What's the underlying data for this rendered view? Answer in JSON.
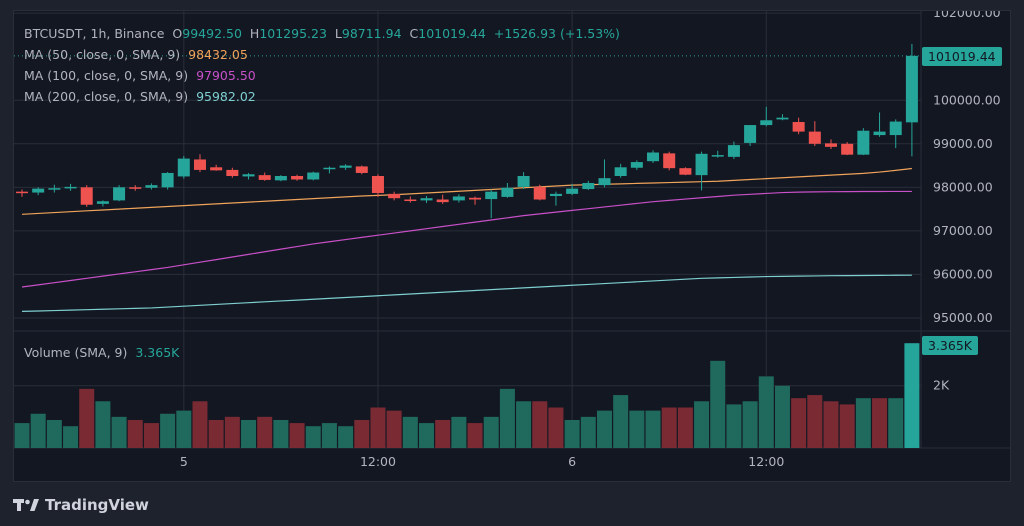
{
  "colors": {
    "background": "#131722",
    "up": "#26a69a",
    "down": "#ef5350",
    "volume_up": "#1f6a5c",
    "volume_down": "#7a2a33",
    "ma50": "#f0a35a",
    "ma100": "#c850c8",
    "ma200": "#7ecfd0",
    "grid": "#2a2e39"
  },
  "header": {
    "symbol_line": "BTCUSDT, 1h, Binance",
    "open_label": "O",
    "open": "99492.50",
    "high_label": "H",
    "high": "101295.23",
    "low_label": "L",
    "low": "98711.94",
    "close_label": "C",
    "close": "101019.44",
    "change": "+1526.93 (+1.53%)"
  },
  "indicators": [
    {
      "label": "MA (50, close, 0, SMA, 9)",
      "value": "98432.05",
      "color": "#f0a35a"
    },
    {
      "label": "MA (100, close, 0, SMA, 9)",
      "value": "97905.50",
      "color": "#c850c8"
    },
    {
      "label": "MA (200, close, 0, SMA, 9)",
      "value": "95982.02",
      "color": "#7ecfd0"
    }
  ],
  "volume_legend": {
    "label": "Volume (SMA, 9)",
    "value": "3.365K"
  },
  "price_axis": {
    "ticks": [
      "102000.00",
      "100000.00",
      "99000.00",
      "98000.00",
      "97000.00",
      "96000.00",
      "95000.00"
    ],
    "current": "101019.44"
  },
  "volume_axis": {
    "ticks": [
      "2K"
    ],
    "current": "3.365K"
  },
  "time_axis": {
    "ticks": [
      "5",
      "12:00",
      "6",
      "12:00"
    ]
  },
  "brand": "TradingView",
  "chart_data": {
    "type": "candlestick",
    "price_ylim": [
      94700,
      102050
    ],
    "candles": [
      {
        "o": 97900,
        "h": 97950,
        "l": 97780,
        "c": 97880
      },
      {
        "o": 97880,
        "h": 98000,
        "l": 97820,
        "c": 97970
      },
      {
        "o": 97950,
        "h": 98060,
        "l": 97880,
        "c": 97980
      },
      {
        "o": 98000,
        "h": 98080,
        "l": 97920,
        "c": 98010
      },
      {
        "o": 98000,
        "h": 98050,
        "l": 97550,
        "c": 97600
      },
      {
        "o": 97620,
        "h": 97700,
        "l": 97560,
        "c": 97680
      },
      {
        "o": 97700,
        "h": 98050,
        "l": 97680,
        "c": 98000
      },
      {
        "o": 98000,
        "h": 98050,
        "l": 97920,
        "c": 97990
      },
      {
        "o": 97990,
        "h": 98090,
        "l": 97950,
        "c": 98050
      },
      {
        "o": 98000,
        "h": 98350,
        "l": 97950,
        "c": 98330
      },
      {
        "o": 98250,
        "h": 98720,
        "l": 98200,
        "c": 98660
      },
      {
        "o": 98640,
        "h": 98760,
        "l": 98350,
        "c": 98400
      },
      {
        "o": 98460,
        "h": 98520,
        "l": 98380,
        "c": 98390
      },
      {
        "o": 98400,
        "h": 98450,
        "l": 98220,
        "c": 98260
      },
      {
        "o": 98250,
        "h": 98330,
        "l": 98180,
        "c": 98300
      },
      {
        "o": 98280,
        "h": 98340,
        "l": 98150,
        "c": 98170
      },
      {
        "o": 98160,
        "h": 98280,
        "l": 98140,
        "c": 98260
      },
      {
        "o": 98260,
        "h": 98290,
        "l": 98150,
        "c": 98180
      },
      {
        "o": 98180,
        "h": 98360,
        "l": 98160,
        "c": 98340
      },
      {
        "o": 98420,
        "h": 98480,
        "l": 98320,
        "c": 98450
      },
      {
        "o": 98450,
        "h": 98530,
        "l": 98400,
        "c": 98500
      },
      {
        "o": 98480,
        "h": 98500,
        "l": 98300,
        "c": 98330
      },
      {
        "o": 98260,
        "h": 98300,
        "l": 97780,
        "c": 97870
      },
      {
        "o": 97850,
        "h": 97900,
        "l": 97700,
        "c": 97750
      },
      {
        "o": 97720,
        "h": 97790,
        "l": 97650,
        "c": 97700
      },
      {
        "o": 97700,
        "h": 97800,
        "l": 97640,
        "c": 97750
      },
      {
        "o": 97720,
        "h": 97830,
        "l": 97620,
        "c": 97660
      },
      {
        "o": 97700,
        "h": 97840,
        "l": 97650,
        "c": 97790
      },
      {
        "o": 97760,
        "h": 97790,
        "l": 97600,
        "c": 97720
      },
      {
        "o": 97730,
        "h": 97950,
        "l": 97290,
        "c": 97900
      },
      {
        "o": 97780,
        "h": 98100,
        "l": 97760,
        "c": 97990
      },
      {
        "o": 98010,
        "h": 98350,
        "l": 97960,
        "c": 98260
      },
      {
        "o": 98010,
        "h": 98060,
        "l": 97700,
        "c": 97720
      },
      {
        "o": 97800,
        "h": 97900,
        "l": 97580,
        "c": 97850
      },
      {
        "o": 97850,
        "h": 98080,
        "l": 97820,
        "c": 97970
      },
      {
        "o": 97960,
        "h": 98150,
        "l": 97940,
        "c": 98100
      },
      {
        "o": 98050,
        "h": 98640,
        "l": 98000,
        "c": 98210
      },
      {
        "o": 98260,
        "h": 98540,
        "l": 98220,
        "c": 98460
      },
      {
        "o": 98450,
        "h": 98620,
        "l": 98400,
        "c": 98580
      },
      {
        "o": 98600,
        "h": 98850,
        "l": 98560,
        "c": 98800
      },
      {
        "o": 98780,
        "h": 98820,
        "l": 98390,
        "c": 98440
      },
      {
        "o": 98440,
        "h": 98460,
        "l": 98280,
        "c": 98290
      },
      {
        "o": 98280,
        "h": 98820,
        "l": 97930,
        "c": 98770
      },
      {
        "o": 98730,
        "h": 98840,
        "l": 98680,
        "c": 98740
      },
      {
        "o": 98700,
        "h": 99050,
        "l": 98650,
        "c": 98970
      },
      {
        "o": 99020,
        "h": 99430,
        "l": 98950,
        "c": 99430
      },
      {
        "o": 99430,
        "h": 99850,
        "l": 99400,
        "c": 99540
      },
      {
        "o": 99560,
        "h": 99680,
        "l": 99540,
        "c": 99600
      },
      {
        "o": 99500,
        "h": 99600,
        "l": 99220,
        "c": 99280
      },
      {
        "o": 99280,
        "h": 99520,
        "l": 98950,
        "c": 99000
      },
      {
        "o": 99010,
        "h": 99100,
        "l": 98880,
        "c": 98930
      },
      {
        "o": 99000,
        "h": 99040,
        "l": 98740,
        "c": 98750
      },
      {
        "o": 98750,
        "h": 99360,
        "l": 98740,
        "c": 99300
      },
      {
        "o": 99200,
        "h": 99720,
        "l": 99160,
        "c": 99280
      },
      {
        "o": 99200,
        "h": 99560,
        "l": 98900,
        "c": 99510
      },
      {
        "o": 99492.5,
        "h": 101295.23,
        "l": 98711.94,
        "c": 101019.44
      }
    ],
    "ma50": [
      97380,
      97400,
      97420,
      97440,
      97460,
      97480,
      97500,
      97520,
      97540,
      97560,
      97580,
      97600,
      97620,
      97640,
      97660,
      97680,
      97700,
      97720,
      97740,
      97760,
      97780,
      97800,
      97815,
      97830,
      97850,
      97870,
      97890,
      97910,
      97930,
      97950,
      97970,
      97990,
      98010,
      98030,
      98050,
      98060,
      98070,
      98080,
      98090,
      98100,
      98110,
      98120,
      98130,
      98140,
      98160,
      98180,
      98200,
      98220,
      98240,
      98260,
      98280,
      98300,
      98320,
      98350,
      98390,
      98432.05
    ],
    "ma100": [
      95710,
      95760,
      95810,
      95860,
      95910,
      95960,
      96010,
      96060,
      96110,
      96160,
      96220,
      96280,
      96340,
      96400,
      96460,
      96520,
      96580,
      96640,
      96700,
      96750,
      96800,
      96850,
      96900,
      96950,
      97000,
      97050,
      97100,
      97150,
      97200,
      97250,
      97300,
      97350,
      97390,
      97430,
      97470,
      97510,
      97550,
      97590,
      97630,
      97670,
      97700,
      97730,
      97760,
      97790,
      97820,
      97840,
      97860,
      97880,
      97890,
      97895,
      97900,
      97902,
      97904,
      97905,
      97905.3,
      97905.5
    ],
    "ma200": [
      95150,
      95160,
      95170,
      95180,
      95190,
      95200,
      95210,
      95220,
      95230,
      95250,
      95270,
      95290,
      95310,
      95330,
      95350,
      95370,
      95390,
      95410,
      95430,
      95450,
      95470,
      95490,
      95510,
      95530,
      95550,
      95570,
      95590,
      95610,
      95630,
      95650,
      95670,
      95690,
      95710,
      95730,
      95750,
      95770,
      95790,
      95810,
      95830,
      95850,
      95870,
      95890,
      95910,
      95920,
      95930,
      95940,
      95950,
      95955,
      95960,
      95965,
      95970,
      95972,
      95975,
      95978,
      95980,
      95982.02
    ],
    "volume_max": 3500,
    "volumes": [
      800,
      1100,
      900,
      700,
      1900,
      1500,
      1000,
      900,
      800,
      1100,
      1200,
      1500,
      900,
      1000,
      900,
      1000,
      900,
      800,
      700,
      800,
      700,
      900,
      1300,
      1200,
      1000,
      800,
      900,
      1000,
      800,
      1000,
      1900,
      1500,
      1500,
      1300,
      900,
      1000,
      1200,
      1700,
      1200,
      1200,
      1300,
      1300,
      1500,
      2800,
      1400,
      1500,
      2300,
      2000,
      1600,
      1700,
      1500,
      1400,
      1600,
      1600,
      1600,
      3365
    ],
    "volume_directions": [
      "up",
      "up",
      "up",
      "up",
      "down",
      "up",
      "up",
      "down",
      "down",
      "up",
      "up",
      "down",
      "down",
      "down",
      "up",
      "down",
      "up",
      "down",
      "up",
      "up",
      "up",
      "down",
      "down",
      "down",
      "up",
      "up",
      "down",
      "up",
      "down",
      "up",
      "up",
      "up",
      "down",
      "down",
      "up",
      "up",
      "up",
      "up",
      "up",
      "up",
      "down",
      "down",
      "up",
      "up",
      "up",
      "up",
      "up",
      "up",
      "down",
      "down",
      "down",
      "down",
      "up",
      "down",
      "up",
      "up"
    ]
  }
}
